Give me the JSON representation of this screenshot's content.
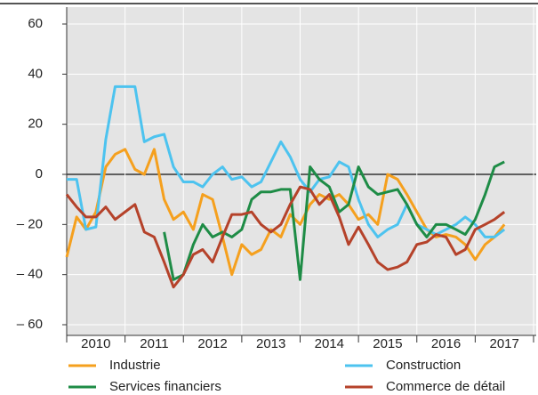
{
  "chart_data": {
    "type": "line",
    "x": [
      2010.0,
      2010.17,
      2010.33,
      2010.5,
      2010.67,
      2010.83,
      2011.0,
      2011.17,
      2011.33,
      2011.5,
      2011.67,
      2011.83,
      2012.0,
      2012.17,
      2012.33,
      2012.5,
      2012.67,
      2012.83,
      2013.0,
      2013.17,
      2013.33,
      2013.5,
      2013.67,
      2013.83,
      2014.0,
      2014.17,
      2014.33,
      2014.5,
      2014.67,
      2014.83,
      2015.0,
      2015.17,
      2015.33,
      2015.5,
      2015.67,
      2015.83,
      2016.0,
      2016.17,
      2016.33,
      2016.5,
      2016.67,
      2016.83,
      2017.0,
      2017.17,
      2017.33,
      2017.5
    ],
    "series": [
      {
        "name": "Industrie",
        "color": "#f5a01e",
        "values": [
          -33,
          -17,
          -22,
          -15,
          3,
          8,
          10,
          2,
          0,
          10,
          -10,
          -18,
          -15,
          -22,
          -8,
          -10,
          -25,
          -40,
          -28,
          -32,
          -30,
          -22,
          -25,
          -16,
          -20,
          -12,
          -8,
          -10,
          -8,
          -12,
          -18,
          -16,
          -20,
          0,
          -2,
          -8,
          -15,
          -22,
          -25,
          -24,
          -25,
          -28,
          -34,
          -28,
          -25,
          -20
        ]
      },
      {
        "name": "Construction",
        "color": "#4dc3ef",
        "values": [
          -2,
          -2,
          -22,
          -21,
          14,
          35,
          35,
          35,
          13,
          15,
          16,
          3,
          -3,
          -3,
          -5,
          0,
          3,
          -2,
          -1,
          -5,
          -3,
          5,
          13,
          7,
          -2,
          -7,
          -2,
          -1,
          5,
          3,
          -10,
          -20,
          -25,
          -22,
          -20,
          -12,
          -20,
          -22,
          -24,
          -22,
          -20,
          -17,
          -20,
          -25,
          -25,
          -22
        ]
      },
      {
        "name": "Services financiers",
        "color": "#1e8c46",
        "values": [
          null,
          null,
          null,
          null,
          null,
          null,
          null,
          null,
          null,
          null,
          -23,
          -42,
          -40,
          -28,
          -20,
          -25,
          -23,
          -25,
          -22,
          -10,
          -7,
          -7,
          -6,
          -6,
          -42,
          3,
          -2,
          -5,
          -15,
          -12,
          3,
          -5,
          -8,
          -7,
          -6,
          -12,
          -20,
          -25,
          -20,
          -20,
          -22,
          -24,
          -18,
          -8,
          3,
          5
        ]
      },
      {
        "name": "Commerce de détail",
        "color": "#b5422a",
        "values": [
          -8,
          -13,
          -17,
          -17,
          -13,
          -18,
          -15,
          -12,
          -23,
          -25,
          -35,
          -45,
          -40,
          -32,
          -30,
          -35,
          -25,
          -16,
          -16,
          -15,
          -20,
          -23,
          -20,
          -12,
          -5,
          -6,
          -12,
          -8,
          -17,
          -28,
          -21,
          -28,
          -35,
          -38,
          -37,
          -35,
          -28,
          -27,
          -24,
          -25,
          -32,
          -30,
          -22,
          -20,
          -18,
          -15
        ]
      }
    ],
    "xlim": [
      2010,
      2018
    ],
    "xticks": [
      {
        "value": 2010.5,
        "label": "2010"
      },
      {
        "value": 2011.5,
        "label": "2011"
      },
      {
        "value": 2012.5,
        "label": "2012"
      },
      {
        "value": 2013.5,
        "label": "2013"
      },
      {
        "value": 2014.5,
        "label": "2014"
      },
      {
        "value": 2015.5,
        "label": "2015"
      },
      {
        "value": 2016.5,
        "label": "2016"
      },
      {
        "value": 2017.5,
        "label": "2017"
      }
    ],
    "xminor": [
      2010,
      2011,
      2012,
      2013,
      2014,
      2015,
      2016,
      2017,
      2018
    ],
    "ylim": [
      -60,
      60
    ],
    "yticks": [
      {
        "value": -60,
        "label": "– 60"
      },
      {
        "value": -40,
        "label": "– 40"
      },
      {
        "value": -20,
        "label": "– 20"
      },
      0,
      20,
      40,
      60
    ],
    "grid": true
  }
}
